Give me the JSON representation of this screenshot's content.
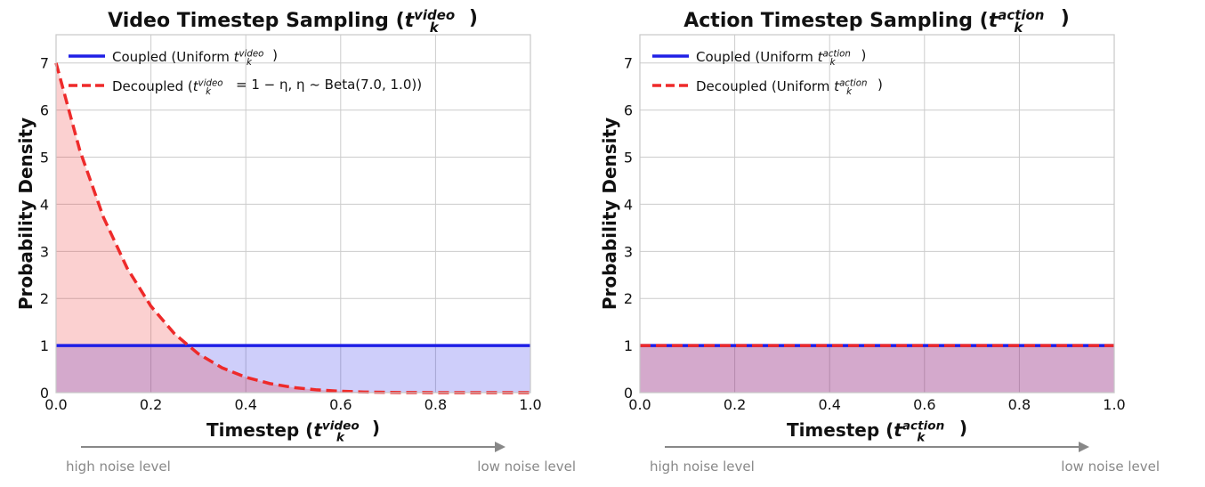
{
  "colors": {
    "coupled": "#1f1fe6",
    "decoupled": "#ee2a2a",
    "coupled_fill": "#c8c8fb",
    "decoupled_fill": "#fdc7c7",
    "overlap_fill": "#d6a2cc",
    "grid": "#cccccc",
    "noise_text": "#888888"
  },
  "chart_data": [
    {
      "type": "area",
      "title": {
        "text": "Video Timestep Sampling (",
        "var": "t",
        "sup": "video",
        "sub": "k",
        "close": ")"
      },
      "xlabel": {
        "text": "Timestep (",
        "var": "t",
        "sup": "video",
        "sub": "k",
        "close": ")"
      },
      "ylabel": "Probability Density",
      "xlim": [
        0.0,
        1.0
      ],
      "ylim": [
        0,
        7.6
      ],
      "xticks": [
        "0.0",
        "0.2",
        "0.4",
        "0.6",
        "0.8",
        "1.0"
      ],
      "yticks": [
        "0",
        "1",
        "2",
        "3",
        "4",
        "5",
        "6",
        "7"
      ],
      "grid": true,
      "legend_position": "top-left",
      "series": [
        {
          "name_parts": {
            "pre": "Coupled (Uniform ",
            "var": "t",
            "sup": "video",
            "sub": "k",
            "post": ")"
          },
          "style": "solid",
          "color": "#1f1fe6",
          "x": [
            0.0,
            1.0
          ],
          "y": [
            1.0,
            1.0
          ]
        },
        {
          "name_parts": {
            "pre": "Decoupled (",
            "var": "t",
            "sup": "video",
            "sub": "k",
            "post": " = 1 − η,  η ~ Beta(7.0, 1.0))"
          },
          "style": "dashed",
          "color": "#ee2a2a",
          "x": [
            0.0,
            0.05,
            0.1,
            0.15,
            0.2,
            0.25,
            0.3,
            0.35,
            0.4,
            0.45,
            0.5,
            0.55,
            0.6,
            0.65,
            0.7,
            0.75,
            0.8,
            0.85,
            0.9,
            0.95,
            1.0
          ],
          "y": [
            7.0,
            5.146,
            3.721,
            2.64,
            1.835,
            1.246,
            0.824,
            0.527,
            0.327,
            0.194,
            0.109,
            0.058,
            0.029,
            0.013,
            0.005,
            0.002,
            0.0004,
            0.0001,
            0.0,
            0.0,
            0.0
          ]
        }
      ],
      "annotations": {
        "left": "high noise level",
        "right": "low noise level"
      }
    },
    {
      "type": "area",
      "title": {
        "text": "Action Timestep Sampling (",
        "var": "t",
        "sup": "action",
        "sub": "k",
        "close": ")"
      },
      "xlabel": {
        "text": "Timestep (",
        "var": "t",
        "sup": "action",
        "sub": "k",
        "close": ")"
      },
      "ylabel": "Probability Density",
      "xlim": [
        0.0,
        1.0
      ],
      "ylim": [
        0,
        7.6
      ],
      "xticks": [
        "0.0",
        "0.2",
        "0.4",
        "0.6",
        "0.8",
        "1.0"
      ],
      "yticks": [
        "0",
        "1",
        "2",
        "3",
        "4",
        "5",
        "6",
        "7"
      ],
      "grid": true,
      "legend_position": "top-left",
      "series": [
        {
          "name_parts": {
            "pre": "Coupled (Uniform ",
            "var": "t",
            "sup": "action",
            "sub": "k",
            "post": ")"
          },
          "style": "solid",
          "color": "#1f1fe6",
          "x": [
            0.0,
            1.0
          ],
          "y": [
            1.0,
            1.0
          ]
        },
        {
          "name_parts": {
            "pre": "Decoupled (Uniform ",
            "var": "t",
            "sup": "action",
            "sub": "k",
            "post": ")"
          },
          "style": "dashed",
          "color": "#ee2a2a",
          "x": [
            0.0,
            1.0
          ],
          "y": [
            1.0,
            1.0
          ]
        }
      ],
      "annotations": {
        "left": "high noise level",
        "right": "low noise level"
      }
    }
  ]
}
